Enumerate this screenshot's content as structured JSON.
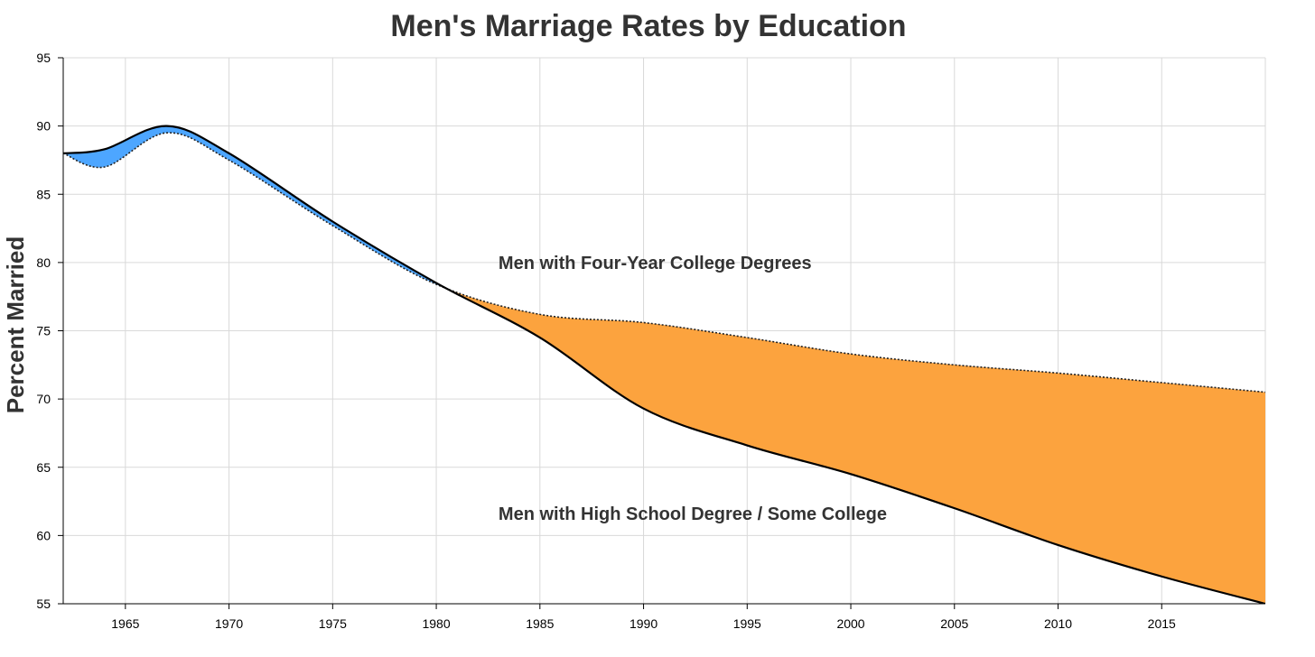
{
  "chart_data": {
    "type": "area",
    "title": "Men's Marriage Rates by Education",
    "xlabel": "",
    "ylabel": "Percent Married",
    "xlim": [
      1962,
      2020
    ],
    "ylim": [
      55,
      95
    ],
    "grid": true,
    "x_ticks": [
      1965,
      1970,
      1975,
      1980,
      1985,
      1990,
      1995,
      2000,
      2005,
      2010,
      2015
    ],
    "y_ticks": [
      55,
      60,
      65,
      70,
      75,
      80,
      85,
      90,
      95
    ],
    "x": [
      1962,
      1964,
      1967,
      1970,
      1975,
      1980,
      1985,
      1990,
      1995,
      2000,
      2005,
      2010,
      2015,
      2020
    ],
    "series": [
      {
        "name": "Men with High School Degree / Some College",
        "line_style": "solid",
        "values": [
          88.0,
          88.3,
          90.0,
          88.0,
          83.0,
          78.5,
          74.5,
          69.3,
          66.6,
          64.5,
          62.0,
          59.3,
          57.0,
          55.0
        ]
      },
      {
        "name": "Men with Four-Year College Degrees",
        "line_style": "dotted",
        "values": [
          88.0,
          87.0,
          89.5,
          87.5,
          82.7,
          78.4,
          76.2,
          75.6,
          74.5,
          73.3,
          72.5,
          71.9,
          71.2,
          70.5
        ]
      }
    ],
    "fill_colors": {
      "college_above": "#4da6ff",
      "college_below": "#fca33e"
    },
    "annotations": [
      {
        "text": "Men with Four-Year College Degrees",
        "x": 1983,
        "y": 80
      },
      {
        "text": "Men with High School Degree / Some College",
        "x": 1983,
        "y": 61.6
      }
    ]
  }
}
